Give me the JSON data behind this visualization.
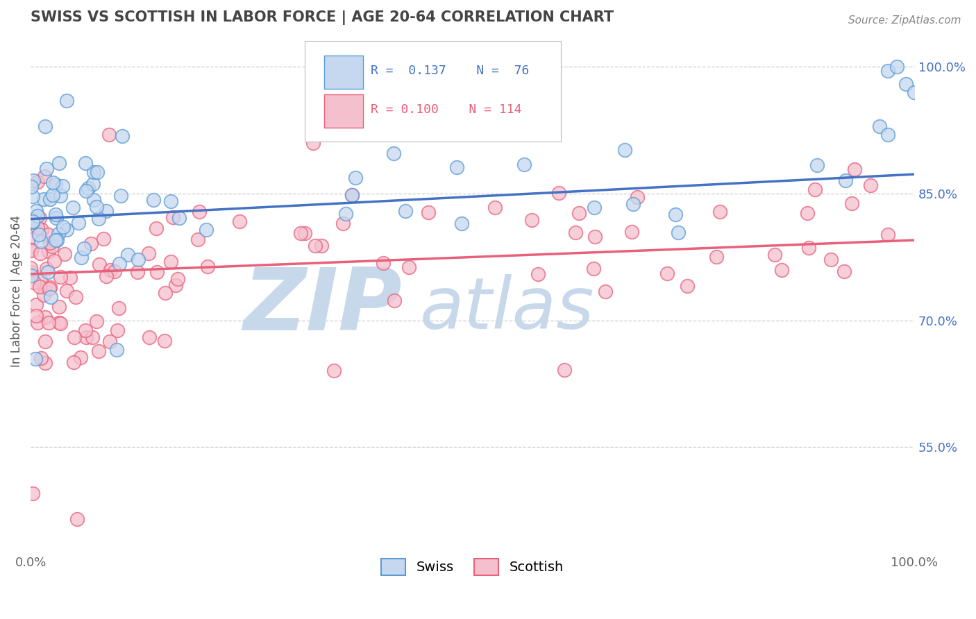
{
  "title": "SWISS VS SCOTTISH IN LABOR FORCE | AGE 20-64 CORRELATION CHART",
  "source_text": "Source: ZipAtlas.com",
  "ylabel": "In Labor Force | Age 20-64",
  "xlim": [
    0.0,
    1.0
  ],
  "ylim": [
    0.43,
    1.04
  ],
  "x_tick_labels": [
    "0.0%",
    "100.0%"
  ],
  "y_tick_labels_right": [
    "55.0%",
    "70.0%",
    "85.0%",
    "100.0%"
  ],
  "y_ticks_right": [
    0.55,
    0.7,
    0.85,
    1.0
  ],
  "swiss_fill_color": "#c5d8f0",
  "scottish_fill_color": "#f5c0ce",
  "swiss_edge_color": "#5b9bd5",
  "scottish_edge_color": "#e8607a",
  "swiss_line_color": "#4472c4",
  "scottish_line_color": "#e8607a",
  "right_tick_color": "#4472c4",
  "R_swiss": 0.137,
  "N_swiss": 76,
  "R_scottish": 0.1,
  "N_scottish": 114,
  "watermark_text": "ZIPatlas",
  "watermark_color": "#c8d8eb",
  "background_color": "#ffffff",
  "grid_color": "#cccccc",
  "swiss_trend_start": 0.82,
  "swiss_trend_end": 0.873,
  "scottish_trend_start": 0.755,
  "scottish_trend_end": 0.795
}
